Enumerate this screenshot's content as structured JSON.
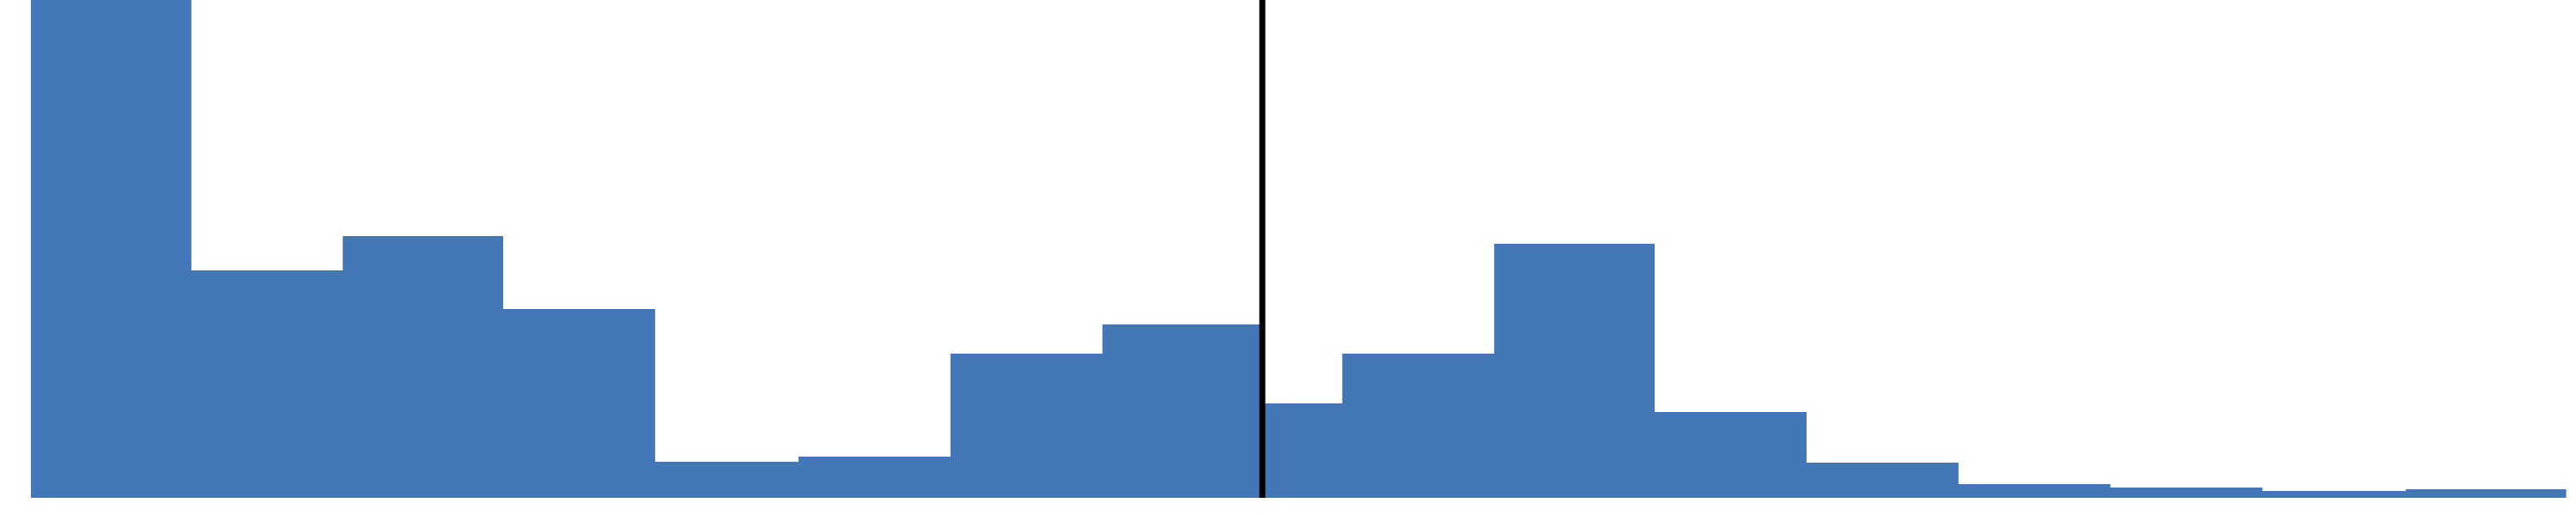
{
  "chart_data": {
    "type": "bar",
    "title": "",
    "xlabel": "",
    "ylabel": "",
    "bar_color": "#4477B7",
    "marker_color": "#000000",
    "values": [
      580,
      265,
      305,
      220,
      42,
      48,
      168,
      202,
      110,
      168,
      296,
      100,
      41,
      16,
      12,
      8,
      10
    ],
    "widths": [
      1,
      0.95,
      1,
      0.95,
      0.9,
      0.95,
      0.95,
      1,
      0.5,
      0.95,
      1,
      0.95,
      0.95,
      0.95,
      0.95,
      0.9,
      1
    ],
    "ylim": [
      0,
      580
    ],
    "marker_position": 8,
    "grid": false,
    "legend": "none"
  }
}
